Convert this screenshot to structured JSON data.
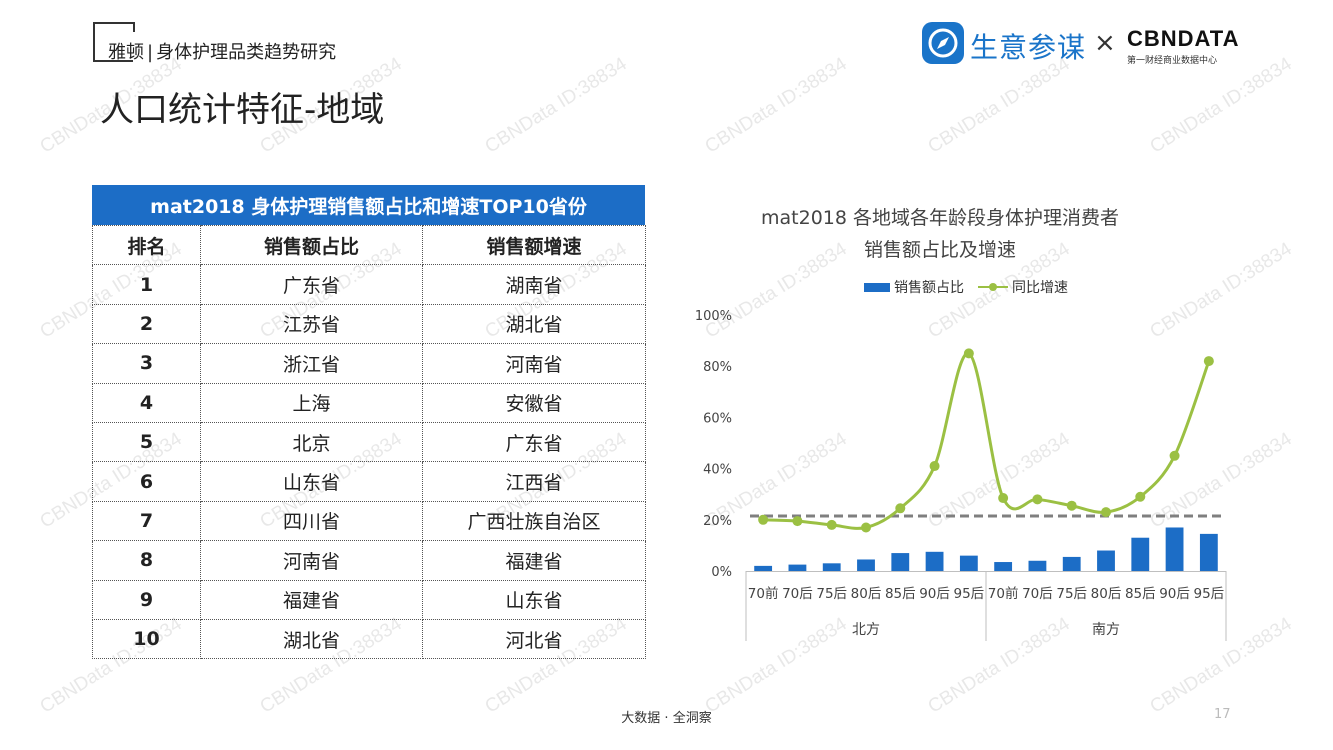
{
  "header": {
    "brand": "雅顿",
    "separator": "|",
    "report": "身体护理品类趋势研究"
  },
  "page_title": "人口统计特征-地域",
  "logos": {
    "partner_name": "生意参谋",
    "times": "×",
    "cbndata": "CBNDATA",
    "cbndata_sub": "第一财经商业数据中心"
  },
  "watermark_text": "CBNData ID:38834",
  "table": {
    "title": "mat2018 身体护理销售额占比和增速TOP10省份",
    "headers": [
      "排名",
      "销售额占比",
      "销售额增速"
    ],
    "rows": [
      {
        "rank": "1",
        "share": "广东省",
        "growth": "湖南省"
      },
      {
        "rank": "2",
        "share": "江苏省",
        "growth": "湖北省"
      },
      {
        "rank": "3",
        "share": "浙江省",
        "growth": "河南省"
      },
      {
        "rank": "4",
        "share": "上海",
        "growth": "安徽省"
      },
      {
        "rank": "5",
        "share": "北京",
        "growth": "广东省"
      },
      {
        "rank": "6",
        "share": "山东省",
        "growth": "江西省"
      },
      {
        "rank": "7",
        "share": "四川省",
        "growth": "广西壮族自治区"
      },
      {
        "rank": "8",
        "share": "河南省",
        "growth": "福建省"
      },
      {
        "rank": "9",
        "share": "福建省",
        "growth": "山东省"
      },
      {
        "rank": "10",
        "share": "湖北省",
        "growth": "河北省"
      }
    ]
  },
  "chart_data": {
    "type": "bar",
    "title_line1": "mat2018 各地域各年龄段身体护理消费者",
    "title_line2": "销售额占比及增速",
    "categories": [
      "70前",
      "70后",
      "75后",
      "80后",
      "85后",
      "90后",
      "95后",
      "70前",
      "70后",
      "75后",
      "80后",
      "85后",
      "90后",
      "95后"
    ],
    "groups": [
      {
        "label": "北方",
        "start": 0,
        "end": 6
      },
      {
        "label": "南方",
        "start": 7,
        "end": 13
      }
    ],
    "series": [
      {
        "name": "销售额占比",
        "type": "bar",
        "color": "#1c6dc6",
        "values": [
          2,
          2.5,
          3,
          4.5,
          7,
          7.5,
          6,
          3.5,
          4,
          5.5,
          8,
          13,
          17,
          14.5
        ]
      },
      {
        "name": "同比增速",
        "type": "line",
        "color": "#9bc043",
        "values": [
          20,
          19.5,
          18,
          17,
          24.5,
          41,
          85,
          28.5,
          28,
          25.5,
          23,
          29,
          45,
          82
        ]
      }
    ],
    "reference_line": {
      "value": 21.5,
      "style": "dashed",
      "color": "#7f7f7f"
    },
    "y_ticks": [
      "0%",
      "20%",
      "40%",
      "60%",
      "80%",
      "100%"
    ],
    "ylim": [
      0,
      100
    ],
    "legend_position": "top"
  },
  "footer": "大数据 · 全洞察",
  "page_number": "17"
}
